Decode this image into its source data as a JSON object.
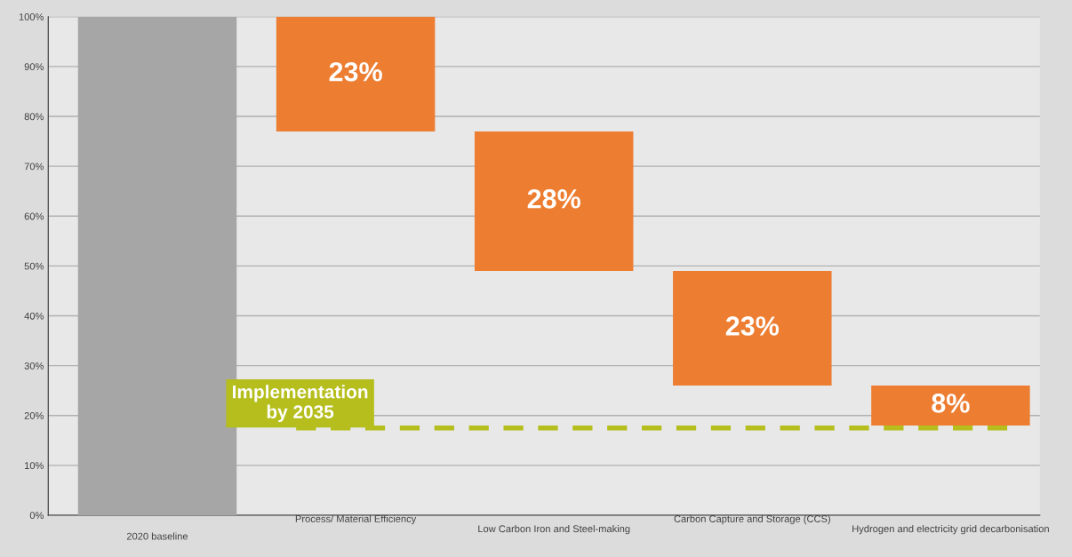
{
  "chart_data": {
    "type": "bar",
    "categories": [
      "2020 baseline",
      "Process/ Material Efficiency",
      "Low Carbon Iron and Steel-making",
      "Carbon Capture and Storage (CCS)",
      "Hydrogen and electricity grid decarbonisation"
    ],
    "values": [
      100,
      23,
      28,
      23,
      8
    ],
    "base": [
      0,
      77,
      49,
      26,
      18
    ],
    "colors": [
      "#a6a6a6",
      "#ed7d31",
      "#ed7d31",
      "#ed7d31",
      "#ed7d31"
    ],
    "value_labels": [
      null,
      "23%",
      "28%",
      "23%",
      "8%"
    ],
    "ylim": [
      0,
      100
    ],
    "yticks": [
      {
        "value": 0,
        "label": "0%"
      },
      {
        "value": 10,
        "label": "10%"
      },
      {
        "value": 20,
        "label": "20%"
      },
      {
        "value": 30,
        "label": "30%"
      },
      {
        "value": 40,
        "label": "40%"
      },
      {
        "value": 50,
        "label": "50%"
      },
      {
        "value": 60,
        "label": "60%"
      },
      {
        "value": 70,
        "label": "70%"
      },
      {
        "value": 80,
        "label": "80%"
      },
      {
        "value": 90,
        "label": "90%"
      },
      {
        "value": 100,
        "label": "100%"
      }
    ],
    "grid": "y",
    "ref_lines": [
      {
        "axis": "y",
        "value": 17.5,
        "label": "Implementation\nby 2035",
        "color": "#b5be1c",
        "line_style": "dashed"
      }
    ]
  }
}
